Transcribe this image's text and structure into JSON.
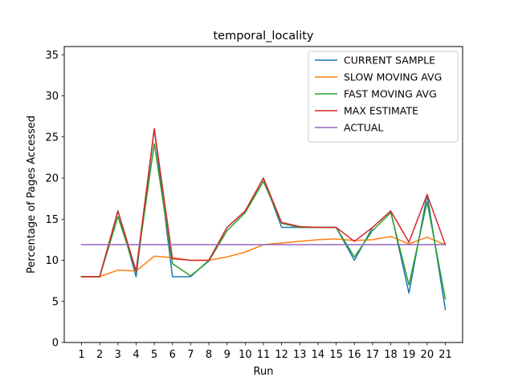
{
  "chart_data": {
    "type": "line",
    "title": "temporal_locality",
    "xlabel": "Run",
    "ylabel": "Percentage of Pages Accessed",
    "x": [
      1,
      2,
      3,
      4,
      5,
      6,
      7,
      8,
      9,
      10,
      11,
      12,
      13,
      14,
      15,
      16,
      17,
      18,
      19,
      20,
      21
    ],
    "xticks": [
      "1",
      "2",
      "3",
      "4",
      "5",
      "6",
      "7",
      "8",
      "9",
      "10",
      "11",
      "12",
      "13",
      "14",
      "15",
      "16",
      "17",
      "18",
      "19",
      "20",
      "21"
    ],
    "xlim": [
      0.05,
      21.95
    ],
    "ylim": [
      0,
      36
    ],
    "yticks": [
      0,
      5,
      10,
      15,
      20,
      25,
      30,
      35
    ],
    "grid": false,
    "legend_position": "top-right",
    "series": [
      {
        "name": "CURRENT SAMPLE",
        "color": "#1f77b4",
        "values": [
          8,
          8,
          16,
          8,
          26,
          8,
          8,
          10,
          14,
          16,
          20,
          14,
          14,
          14,
          14,
          10,
          14,
          16,
          6,
          18,
          4
        ]
      },
      {
        "name": "SLOW MOVING AVG",
        "color": "#ff7f0e",
        "values": [
          8,
          8,
          8.8,
          8.7,
          10.5,
          10.3,
          10.0,
          10.0,
          10.4,
          11.0,
          11.9,
          12.1,
          12.3,
          12.5,
          12.6,
          12.4,
          12.5,
          12.9,
          12.0,
          12.8,
          11.9
        ]
      },
      {
        "name": "FAST MOVING AVG",
        "color": "#2ca02c",
        "values": [
          8,
          8,
          15.3,
          8.6,
          24.2,
          9.6,
          8.1,
          9.9,
          13.6,
          15.8,
          19.6,
          14.5,
          14.0,
          14.0,
          14.0,
          10.4,
          13.6,
          15.8,
          7.0,
          17.1,
          5.3
        ]
      },
      {
        "name": "MAX ESTIMATE",
        "color": "#d62728",
        "values": [
          8,
          8,
          16,
          8.7,
          26,
          10.2,
          10.0,
          10.0,
          14,
          16,
          20,
          14.6,
          14.1,
          14.0,
          14.0,
          12.3,
          14.0,
          16,
          12.2,
          18,
          11.9
        ]
      },
      {
        "name": "ACTUAL",
        "color": "#9467bd",
        "values": [
          11.9,
          11.9,
          11.9,
          11.9,
          11.9,
          11.9,
          11.9,
          11.9,
          11.9,
          11.9,
          11.9,
          11.9,
          11.9,
          11.9,
          11.9,
          11.9,
          11.9,
          11.9,
          11.9,
          11.9,
          11.9
        ]
      }
    ]
  }
}
